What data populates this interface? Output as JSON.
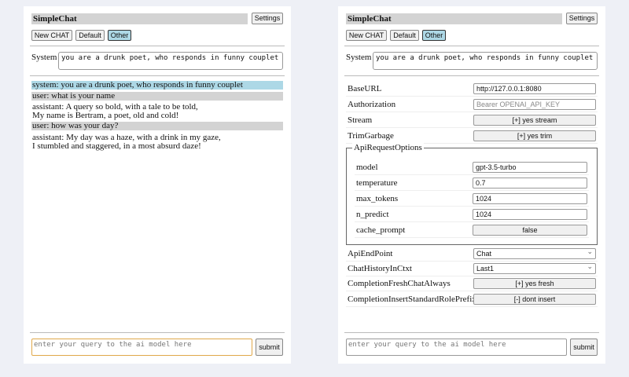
{
  "app": {
    "title": "SimpleChat",
    "settings_label": "Settings",
    "buttons": [
      "New CHAT",
      "Default",
      "Other"
    ],
    "active_button": "Other",
    "system_label": "System",
    "system_prompt": "you are a drunk poet, who responds in funny couplet",
    "input_placeholder": "enter your query to the ai model here",
    "submit_label": "submit"
  },
  "chat": [
    {
      "role": "system",
      "text": "system: you are a drunk poet, who responds in funny couplet",
      "color": "#add8e6"
    },
    {
      "role": "user",
      "text": "user: what is your name",
      "color": "#d3d3d3"
    },
    {
      "role": "assistant",
      "lines": [
        "assistant: A query so bold, with a tale to be told,",
        "My name is Bertram, a poet, old and cold!"
      ]
    },
    {
      "role": "user",
      "text": "user: how was your day?",
      "color": "#d3d3d3"
    },
    {
      "role": "assistant",
      "lines": [
        "assistant: My day was a haze, with a drink in my gaze,",
        "I stumbled and staggered, in a most absurd daze!"
      ]
    }
  ],
  "settings": {
    "base_url": {
      "label": "BaseURL",
      "value": "http://127.0.0.1:8080"
    },
    "authorization": {
      "label": "Authorization",
      "placeholder": "Bearer OPENAI_API_KEY"
    },
    "stream": {
      "label": "Stream",
      "value": "[+] yes stream"
    },
    "trim": {
      "label": "TrimGarbage",
      "value": "[+] yes trim"
    },
    "api_options": {
      "legend": "ApiRequestOptions",
      "model": {
        "label": "model",
        "value": "gpt-3.5-turbo"
      },
      "temperature": {
        "label": "temperature",
        "value": "0.7"
      },
      "max_tokens": {
        "label": "max_tokens",
        "value": "1024"
      },
      "n_predict": {
        "label": "n_predict",
        "value": "1024"
      },
      "cache_prompt": {
        "label": "cache_prompt",
        "value": "false"
      }
    },
    "endpoint": {
      "label": "ApiEndPoint",
      "value": "Chat"
    },
    "history": {
      "label": "ChatHistoryInCtxt",
      "value": "Last1"
    },
    "fresh": {
      "label": "CompletionFreshChatAlways",
      "value": "[+] yes fresh"
    },
    "prefix": {
      "label": "CompletionInsertStandardRolePrefix",
      "value": "[-] dont insert"
    }
  }
}
